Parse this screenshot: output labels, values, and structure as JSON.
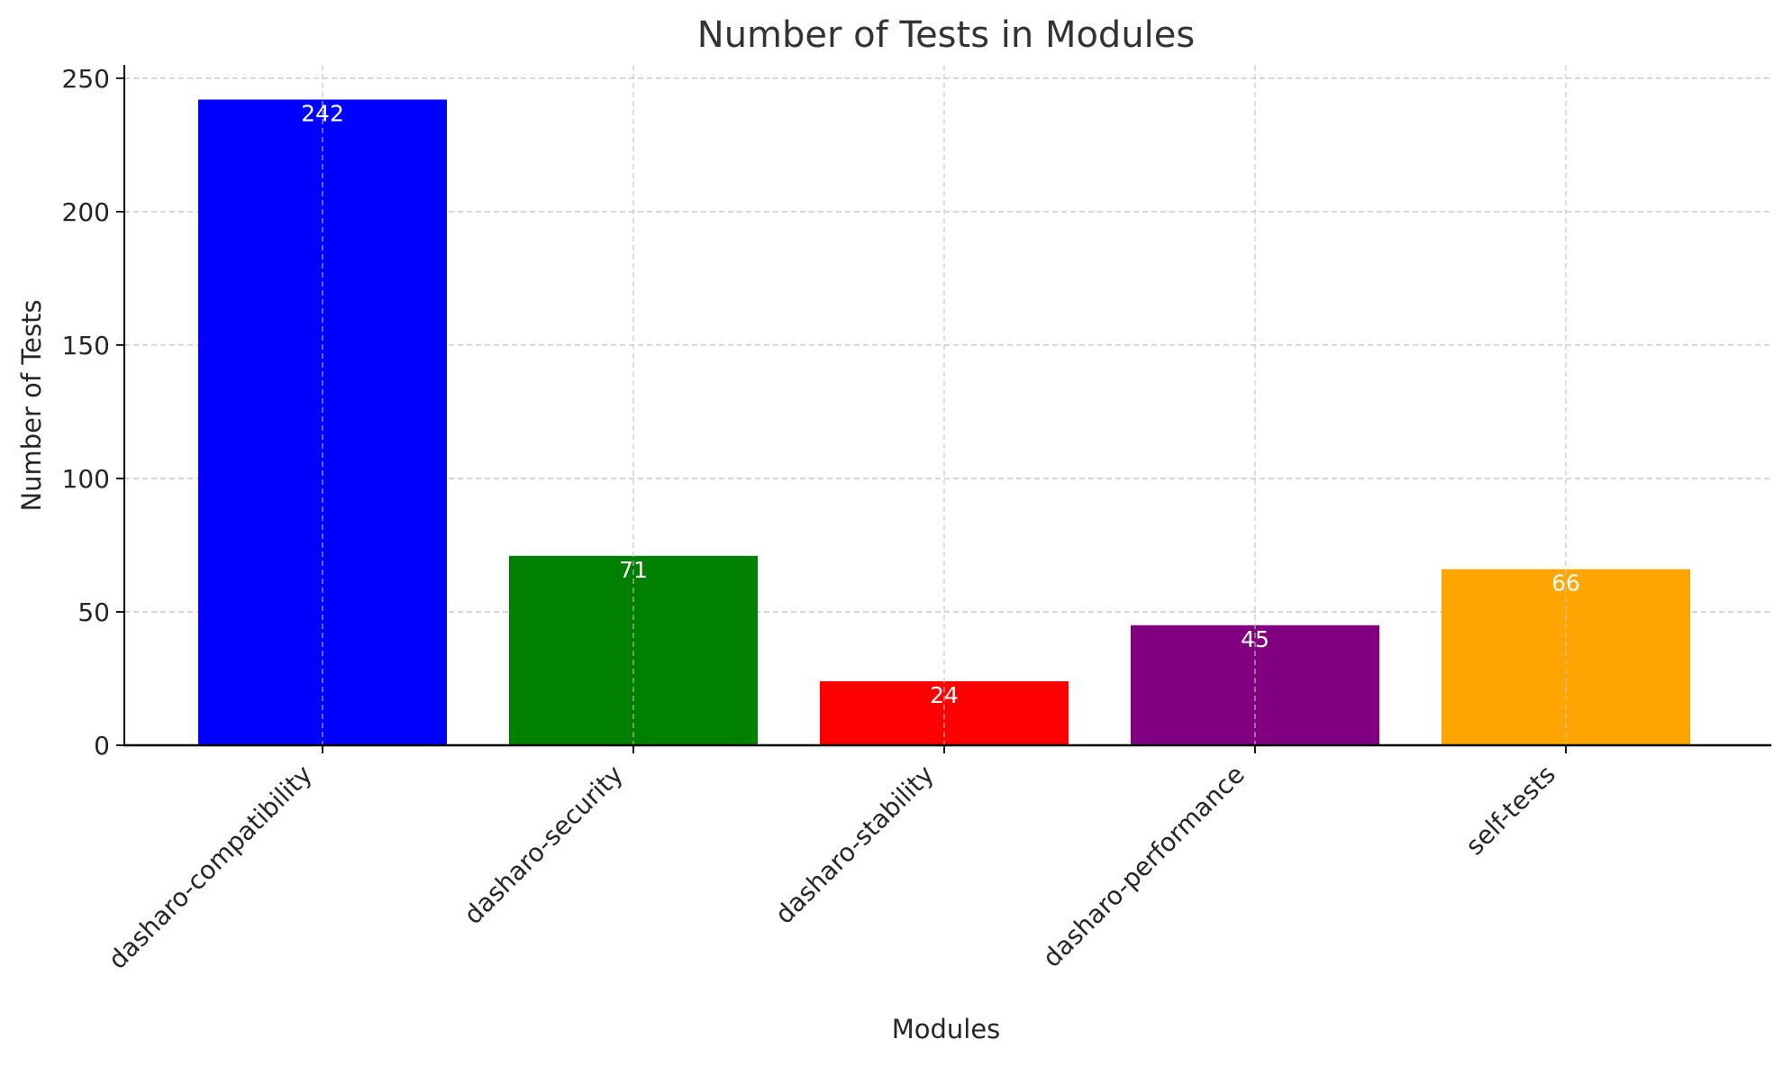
{
  "chart_data": {
    "type": "bar",
    "title": "Number of Tests in Modules",
    "xlabel": "Modules",
    "ylabel": "Number of Tests",
    "categories": [
      "dasharo-compatibility",
      "dasharo-security",
      "dasharo-stability",
      "dasharo-performance",
      "self-tests"
    ],
    "values": [
      242,
      71,
      24,
      45,
      66
    ],
    "colors": [
      "#0000ff",
      "#008000",
      "#ff0000",
      "#800080",
      "#ffa500"
    ],
    "ylim": [
      0,
      255
    ],
    "yticks": [
      0,
      50,
      100,
      150,
      200,
      250
    ],
    "ytick_labels": [
      "0",
      "50",
      "100",
      "150",
      "200",
      "250"
    ],
    "grid": true,
    "data_labels": [
      "242",
      "71",
      "24",
      "45",
      "66"
    ]
  }
}
